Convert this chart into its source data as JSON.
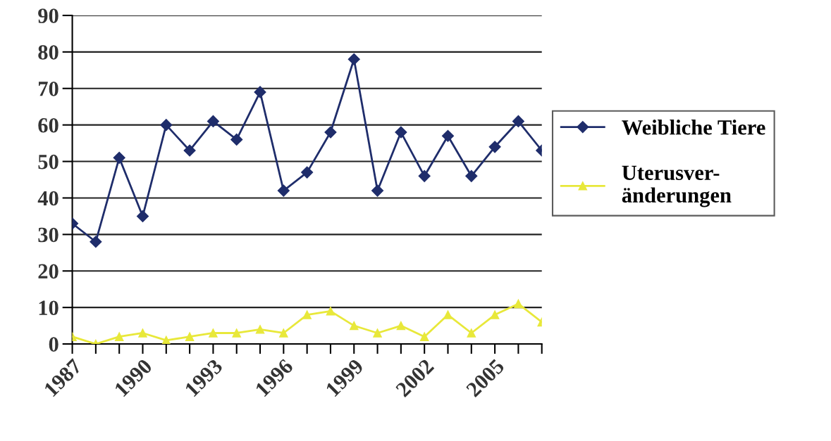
{
  "chart_data": {
    "type": "line",
    "x": [
      1987,
      1988,
      1989,
      1990,
      1991,
      1992,
      1993,
      1994,
      1995,
      1996,
      1997,
      1998,
      1999,
      2000,
      2001,
      2002,
      2003,
      2004,
      2005,
      2006,
      2007
    ],
    "series": [
      {
        "name": "Weibliche Tiere",
        "color": "#1f2d6b",
        "marker": "diamond",
        "values": [
          33,
          28,
          51,
          35,
          60,
          53,
          61,
          56,
          69,
          42,
          47,
          58,
          78,
          42,
          58,
          46,
          57,
          46,
          54,
          61,
          53
        ]
      },
      {
        "name": "Uterusver-\nänderungen",
        "color": "#e8e83a",
        "marker": "triangle",
        "values": [
          2,
          0,
          2,
          3,
          1,
          2,
          3,
          3,
          4,
          3,
          8,
          9,
          5,
          3,
          5,
          2,
          8,
          3,
          8,
          11,
          6
        ]
      }
    ],
    "xlim": [
      1987,
      2007
    ],
    "xticks": [
      1987,
      {
        "value": 1988,
        "label": null
      },
      {
        "value": 1989,
        "label": null
      },
      1990,
      {
        "value": 1991,
        "label": null
      },
      {
        "value": 1992,
        "label": null
      },
      1993,
      {
        "value": 1994,
        "label": null
      },
      {
        "value": 1995,
        "label": null
      },
      1996,
      {
        "value": 1997,
        "label": null
      },
      {
        "value": 1998,
        "label": null
      },
      1999,
      {
        "value": 2000,
        "label": null
      },
      {
        "value": 2001,
        "label": null
      },
      2002,
      {
        "value": 2003,
        "label": null
      },
      {
        "value": 2004,
        "label": null
      },
      2005,
      {
        "value": 2006,
        "label": null
      },
      {
        "value": 2007,
        "label": null
      }
    ],
    "ylim": [
      0,
      90
    ],
    "yticks": [
      0,
      10,
      20,
      30,
      40,
      50,
      60,
      70,
      80,
      90
    ],
    "grid": "y",
    "legend": "right",
    "line_style": "solid"
  }
}
